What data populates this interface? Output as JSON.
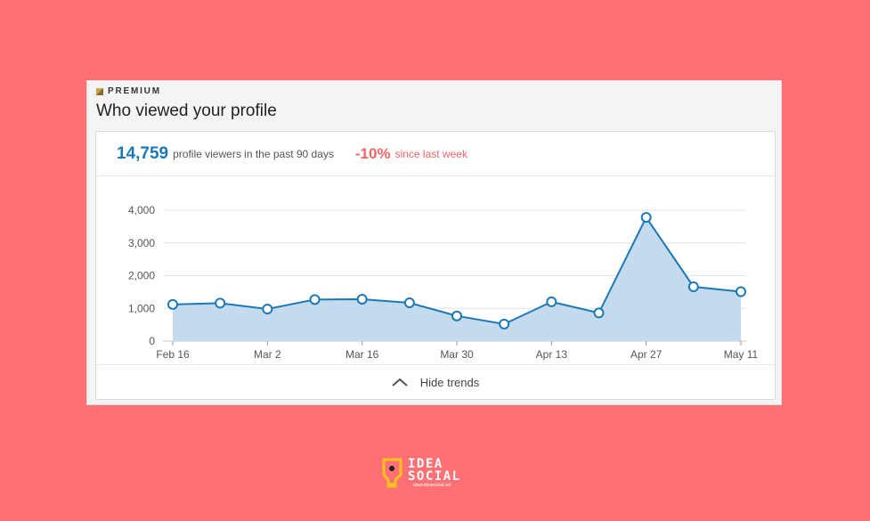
{
  "card": {
    "badge": "PREMIUM",
    "title": "Who viewed your profile"
  },
  "summary": {
    "viewers": "14,759",
    "viewers_label": "profile viewers in the past 90 days",
    "change": "-10%",
    "change_label": "since last week"
  },
  "footer": {
    "toggle_label": "Hide trends",
    "toggle_icon": "chevron-up-icon"
  },
  "colors": {
    "background": "#fe7073",
    "accent_blue": "#1c78b6",
    "negative_red": "#f06366",
    "area_fill": "#c3dbec"
  },
  "logo": {
    "line1": "IDEA",
    "line2": "SOCIAL",
    "url": "www.ideasocial.net"
  },
  "chart_data": {
    "type": "area",
    "x": [
      "Feb 16",
      "Feb 23",
      "Mar 2",
      "Mar 9",
      "Mar 16",
      "Mar 23",
      "Mar 30",
      "Apr 6",
      "Apr 13",
      "Apr 20",
      "Apr 27",
      "May 4",
      "May 11"
    ],
    "values": [
      1120,
      1160,
      980,
      1270,
      1280,
      1170,
      770,
      520,
      1200,
      860,
      3780,
      1660,
      1510
    ],
    "x_tick_labels": [
      "Feb 16",
      "Mar 2",
      "Mar 16",
      "Mar 30",
      "Apr 13",
      "Apr 27",
      "May 11"
    ],
    "y_ticks": [
      0,
      1000,
      2000,
      3000,
      4000
    ],
    "y_tick_labels": [
      "0",
      "1,000",
      "2,000",
      "3,000",
      "4,000"
    ],
    "ylim": [
      0,
      4000
    ],
    "grid": true,
    "legend": "none"
  }
}
